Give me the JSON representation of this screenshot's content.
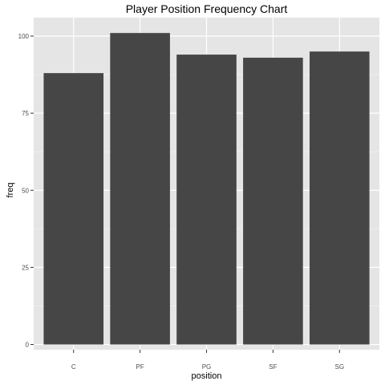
{
  "chart_data": {
    "type": "bar",
    "title": "Player Position Frequency Chart",
    "xlabel": "position",
    "ylabel": "freq",
    "categories": [
      "C",
      "PF",
      "PG",
      "SF",
      "SG"
    ],
    "values": [
      88,
      101,
      94,
      93,
      95
    ],
    "ylim": [
      0,
      106
    ],
    "yticks": [
      0,
      25,
      50,
      75,
      100
    ],
    "ytick_labels": [
      "0",
      "25",
      "50",
      "75",
      "100"
    ],
    "grid": true,
    "legend": "none",
    "colors": {
      "bar": "#464646",
      "panel": "#e5e5e5",
      "grid_major": "#ffffff",
      "grid_minor": "#f0f0f0",
      "tick": "#333333"
    }
  }
}
